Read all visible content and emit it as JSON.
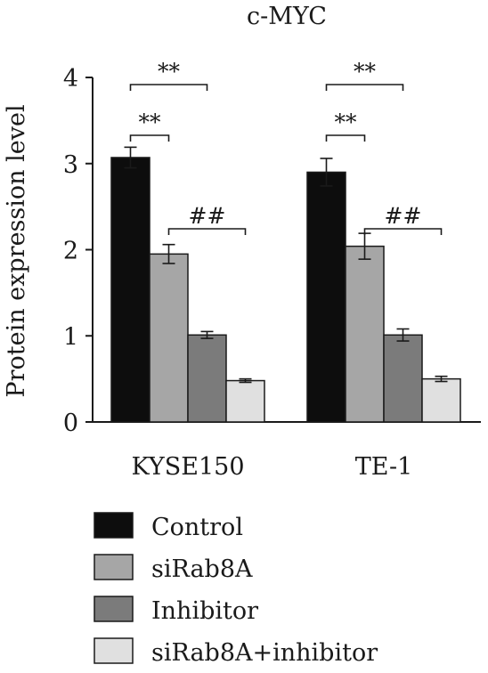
{
  "chart_data": {
    "type": "bar",
    "title": "c-MYC",
    "ylabel": "Protein expression level",
    "xlabel": "",
    "ylim": [
      0,
      4
    ],
    "yticks": [
      0,
      1,
      2,
      3,
      4
    ],
    "categories": [
      "KYSE150",
      "TE-1"
    ],
    "series": [
      {
        "name": "Control",
        "color": "#0d0d0d",
        "values": [
          3.07,
          2.9
        ],
        "errors": [
          0.12,
          0.16
        ]
      },
      {
        "name": "siRab8A",
        "color": "#a6a6a6",
        "values": [
          1.95,
          2.04
        ],
        "errors": [
          0.11,
          0.15
        ]
      },
      {
        "name": "Inhibitor",
        "color": "#7b7b7b",
        "values": [
          1.01,
          1.01
        ],
        "errors": [
          0.04,
          0.07
        ]
      },
      {
        "name": "siRab8A+inhibitor",
        "color": "#e0e0e0",
        "values": [
          0.48,
          0.5
        ],
        "errors": [
          0.02,
          0.03
        ]
      }
    ],
    "annotations": [
      {
        "category": "KYSE150",
        "from_series": 0,
        "to_series": 2,
        "label": "**"
      },
      {
        "category": "KYSE150",
        "from_series": 0,
        "to_series": 1,
        "label": "**"
      },
      {
        "category": "KYSE150",
        "from_series": 1,
        "to_series": 3,
        "label": "##"
      },
      {
        "category": "TE-1",
        "from_series": 0,
        "to_series": 2,
        "label": "**"
      },
      {
        "category": "TE-1",
        "from_series": 0,
        "to_series": 1,
        "label": "**"
      },
      {
        "category": "TE-1",
        "from_series": 1,
        "to_series": 3,
        "label": "##"
      }
    ],
    "legend_position": "bottom",
    "grid": false
  }
}
